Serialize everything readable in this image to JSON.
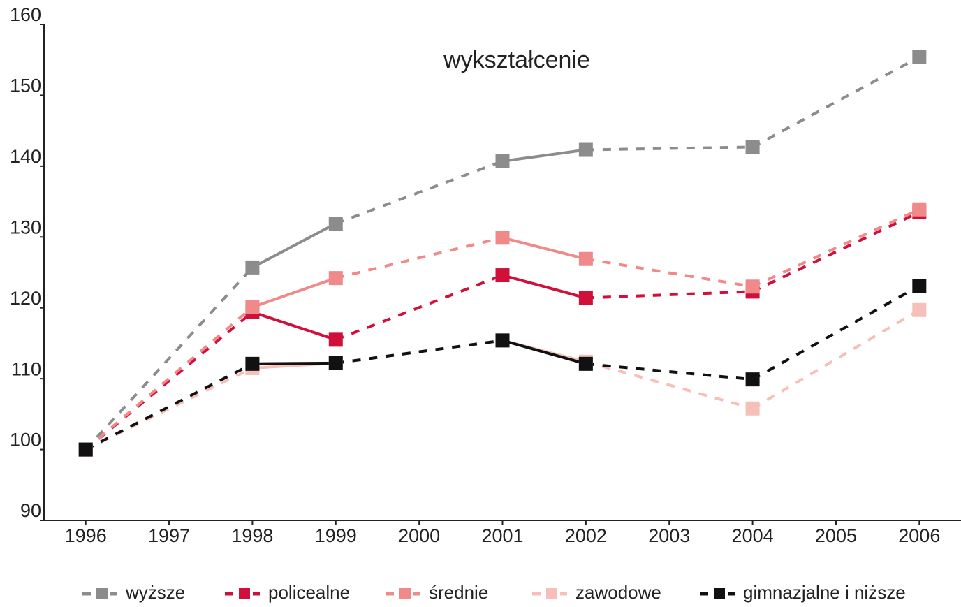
{
  "chart_data": {
    "type": "line",
    "title": "wykształcenie",
    "x": [
      1996,
      1998,
      1999,
      2001,
      2002,
      2004,
      2006
    ],
    "xlim": [
      1995.5,
      2006.5
    ],
    "xticks": [
      1996,
      1997,
      1998,
      1999,
      2000,
      2001,
      2002,
      2003,
      2004,
      2005,
      2006
    ],
    "ylim": [
      90,
      160
    ],
    "yticks": [
      90,
      100,
      110,
      120,
      130,
      140,
      150,
      160
    ],
    "grid": false,
    "legend": "bottom",
    "series": [
      {
        "name": "wyższe",
        "color": "#8c8c8c",
        "values": [
          100,
          125.7,
          131.9,
          140.7,
          142.3,
          142.7,
          155.4
        ]
      },
      {
        "name": "policealne",
        "color": "#d0103a",
        "values": [
          100,
          119.4,
          115.5,
          124.6,
          121.4,
          122.3,
          133.5
        ]
      },
      {
        "name": "średnie",
        "color": "#f08a8a",
        "values": [
          100,
          120.1,
          124.2,
          129.9,
          126.9,
          123.0,
          133.9
        ]
      },
      {
        "name": "zawodowe",
        "color": "#f6c0b8",
        "values": [
          100,
          111.5,
          112.2,
          115.4,
          112.4,
          105.8,
          119.7
        ]
      },
      {
        "name": "gimnazjalne i niższe",
        "color": "#111111",
        "values": [
          100,
          112.1,
          112.2,
          115.4,
          112.1,
          109.9,
          123.1
        ]
      }
    ]
  }
}
